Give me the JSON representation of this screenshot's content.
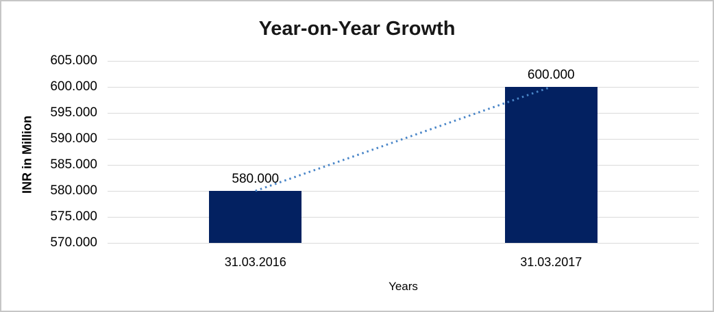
{
  "chart_data": {
    "type": "bar",
    "title": "Year-on-Year Growth",
    "xlabel": "Years",
    "ylabel": "INR in Million",
    "categories": [
      "31.03.2016",
      "31.03.2017"
    ],
    "values": [
      580,
      600
    ],
    "data_labels": [
      "580.000",
      "600.000"
    ],
    "ylim": [
      570,
      605
    ],
    "y_ticks": [
      {
        "value": 605,
        "label": "605.000"
      },
      {
        "value": 600,
        "label": "600.000"
      },
      {
        "value": 595,
        "label": "595.000"
      },
      {
        "value": 590,
        "label": "590.000"
      },
      {
        "value": 585,
        "label": "585.000"
      },
      {
        "value": 580,
        "label": "580.000"
      },
      {
        "value": 575,
        "label": "575.000"
      },
      {
        "value": 570,
        "label": "570.000"
      }
    ],
    "grid": true,
    "legend": "none",
    "trendline": {
      "style": "dotted",
      "from_point": [
        0,
        580
      ],
      "to_point": [
        1,
        600
      ]
    },
    "colors": {
      "bar": "#032161",
      "trendline": "#4a86c8",
      "gridline": "#d9d9d9",
      "text": "#000000",
      "title_text": "#171717",
      "canvas_border": "#c6c6c6",
      "background": "#ffffff"
    }
  }
}
